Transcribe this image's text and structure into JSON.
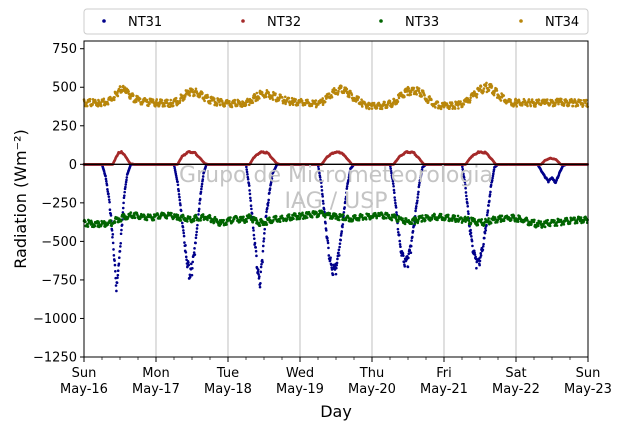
{
  "chart_data": {
    "type": "scatter",
    "xlabel": "Day",
    "ylabel": "Radiation (Wm⁻²)",
    "ylim": [
      -1250,
      800
    ],
    "yticks": [
      -1250,
      -1000,
      -750,
      -500,
      -250,
      0,
      250,
      500,
      750
    ],
    "xlim": [
      0,
      7
    ],
    "xticks": [
      {
        "x": 0,
        "day": "Sun",
        "date": "May-16"
      },
      {
        "x": 1,
        "day": "Mon",
        "date": "May-17"
      },
      {
        "x": 2,
        "day": "Tue",
        "date": "May-18"
      },
      {
        "x": 3,
        "day": "Wed",
        "date": "May-19"
      },
      {
        "x": 4,
        "day": "Thu",
        "date": "May-20"
      },
      {
        "x": 5,
        "day": "Fri",
        "date": "May-21"
      },
      {
        "x": 6,
        "day": "Sat",
        "date": "May-22"
      },
      {
        "x": 7,
        "day": "Sun",
        "date": "May-23"
      }
    ],
    "grid": "vertical",
    "legend_position": "top",
    "watermark": [
      "Grupo de Micrometeorologia",
      "IAG / USP"
    ],
    "series": [
      {
        "name": "NT31",
        "color": "#00008b",
        "points": [
          [
            0.0,
            0
          ],
          [
            0.25,
            0
          ],
          [
            0.3,
            -80
          ],
          [
            0.34,
            -200
          ],
          [
            0.37,
            -320
          ],
          [
            0.4,
            -480
          ],
          [
            0.43,
            -650
          ],
          [
            0.45,
            -780
          ],
          [
            0.47,
            -700
          ],
          [
            0.5,
            -540
          ],
          [
            0.53,
            -380
          ],
          [
            0.56,
            -200
          ],
          [
            0.6,
            -70
          ],
          [
            0.65,
            0
          ],
          [
            1.0,
            0
          ],
          [
            1.25,
            0
          ],
          [
            1.3,
            -120
          ],
          [
            1.34,
            -260
          ],
          [
            1.38,
            -420
          ],
          [
            1.42,
            -600
          ],
          [
            1.46,
            -700
          ],
          [
            1.5,
            -680
          ],
          [
            1.54,
            -560
          ],
          [
            1.58,
            -380
          ],
          [
            1.62,
            -200
          ],
          [
            1.66,
            -60
          ],
          [
            1.7,
            0
          ],
          [
            2.0,
            0
          ],
          [
            2.25,
            0
          ],
          [
            2.3,
            -160
          ],
          [
            2.35,
            -400
          ],
          [
            2.4,
            -640
          ],
          [
            2.44,
            -780
          ],
          [
            2.48,
            -600
          ],
          [
            2.52,
            -380
          ],
          [
            2.57,
            -200
          ],
          [
            2.62,
            -60
          ],
          [
            2.68,
            0
          ],
          [
            3.0,
            0
          ],
          [
            3.25,
            0
          ],
          [
            3.3,
            -140
          ],
          [
            3.35,
            -360
          ],
          [
            3.4,
            -580
          ],
          [
            3.45,
            -700
          ],
          [
            3.5,
            -680
          ],
          [
            3.55,
            -560
          ],
          [
            3.6,
            -360
          ],
          [
            3.65,
            -160
          ],
          [
            3.7,
            -30
          ],
          [
            3.75,
            0
          ],
          [
            4.0,
            0
          ],
          [
            4.25,
            0
          ],
          [
            4.3,
            -140
          ],
          [
            4.35,
            -360
          ],
          [
            4.4,
            -560
          ],
          [
            4.45,
            -650
          ],
          [
            4.5,
            -630
          ],
          [
            4.55,
            -520
          ],
          [
            4.6,
            -340
          ],
          [
            4.65,
            -150
          ],
          [
            4.7,
            -20
          ],
          [
            4.75,
            0
          ],
          [
            5.0,
            0
          ],
          [
            5.25,
            0
          ],
          [
            5.3,
            -150
          ],
          [
            5.35,
            -380
          ],
          [
            5.4,
            -560
          ],
          [
            5.45,
            -640
          ],
          [
            5.5,
            -630
          ],
          [
            5.55,
            -520
          ],
          [
            5.6,
            -340
          ],
          [
            5.65,
            -150
          ],
          [
            5.7,
            -20
          ],
          [
            5.75,
            0
          ],
          [
            6.0,
            0
          ],
          [
            6.3,
            0
          ],
          [
            6.35,
            -40
          ],
          [
            6.4,
            -80
          ],
          [
            6.45,
            -110
          ],
          [
            6.5,
            -90
          ],
          [
            6.55,
            -120
          ],
          [
            6.6,
            -60
          ],
          [
            6.65,
            -10
          ],
          [
            6.7,
            0
          ],
          [
            7.0,
            0
          ]
        ]
      },
      {
        "name": "NT32",
        "color": "#a52a2a",
        "points": [
          [
            0.0,
            0
          ],
          [
            0.4,
            0
          ],
          [
            0.44,
            40
          ],
          [
            0.48,
            75
          ],
          [
            0.52,
            80
          ],
          [
            0.56,
            65
          ],
          [
            0.6,
            35
          ],
          [
            0.64,
            5
          ],
          [
            0.7,
            0
          ],
          [
            1.0,
            0
          ],
          [
            1.3,
            0
          ],
          [
            1.36,
            50
          ],
          [
            1.45,
            80
          ],
          [
            1.54,
            75
          ],
          [
            1.62,
            35
          ],
          [
            1.68,
            5
          ],
          [
            1.72,
            0
          ],
          [
            2.0,
            0
          ],
          [
            2.3,
            0
          ],
          [
            2.36,
            45
          ],
          [
            2.45,
            80
          ],
          [
            2.55,
            75
          ],
          [
            2.62,
            35
          ],
          [
            2.68,
            5
          ],
          [
            2.72,
            0
          ],
          [
            3.0,
            0
          ],
          [
            3.3,
            0
          ],
          [
            3.38,
            50
          ],
          [
            3.48,
            80
          ],
          [
            3.58,
            75
          ],
          [
            3.66,
            35
          ],
          [
            3.72,
            0
          ],
          [
            4.0,
            0
          ],
          [
            4.3,
            0
          ],
          [
            4.38,
            50
          ],
          [
            4.48,
            80
          ],
          [
            4.58,
            75
          ],
          [
            4.66,
            35
          ],
          [
            4.72,
            0
          ],
          [
            5.0,
            0
          ],
          [
            5.3,
            0
          ],
          [
            5.38,
            50
          ],
          [
            5.48,
            80
          ],
          [
            5.58,
            75
          ],
          [
            5.66,
            35
          ],
          [
            5.72,
            0
          ],
          [
            6.0,
            0
          ],
          [
            6.35,
            0
          ],
          [
            6.4,
            25
          ],
          [
            6.48,
            40
          ],
          [
            6.56,
            30
          ],
          [
            6.62,
            0
          ],
          [
            7.0,
            0
          ]
        ]
      },
      {
        "name": "NT33",
        "color": "#006400",
        "points": [
          [
            0.0,
            -380
          ],
          [
            0.1,
            -385
          ],
          [
            0.2,
            -390
          ],
          [
            0.3,
            -385
          ],
          [
            0.4,
            -375
          ],
          [
            0.5,
            -350
          ],
          [
            0.6,
            -335
          ],
          [
            0.7,
            -330
          ],
          [
            0.8,
            -340
          ],
          [
            0.9,
            -345
          ],
          [
            1.0,
            -340
          ],
          [
            1.1,
            -330
          ],
          [
            1.2,
            -335
          ],
          [
            1.3,
            -345
          ],
          [
            1.4,
            -350
          ],
          [
            1.5,
            -355
          ],
          [
            1.6,
            -345
          ],
          [
            1.7,
            -340
          ],
          [
            1.8,
            -360
          ],
          [
            1.9,
            -380
          ],
          [
            2.0,
            -370
          ],
          [
            2.1,
            -355
          ],
          [
            2.2,
            -365
          ],
          [
            2.3,
            -345
          ],
          [
            2.4,
            -375
          ],
          [
            2.5,
            -380
          ],
          [
            2.6,
            -360
          ],
          [
            2.7,
            -355
          ],
          [
            2.8,
            -350
          ],
          [
            2.9,
            -340
          ],
          [
            3.0,
            -335
          ],
          [
            3.1,
            -330
          ],
          [
            3.2,
            -325
          ],
          [
            3.3,
            -320
          ],
          [
            3.4,
            -330
          ],
          [
            3.5,
            -340
          ],
          [
            3.6,
            -345
          ],
          [
            3.7,
            -350
          ],
          [
            3.8,
            -345
          ],
          [
            3.9,
            -340
          ],
          [
            4.0,
            -335
          ],
          [
            4.1,
            -330
          ],
          [
            4.2,
            -335
          ],
          [
            4.3,
            -345
          ],
          [
            4.4,
            -360
          ],
          [
            4.5,
            -375
          ],
          [
            4.6,
            -365
          ],
          [
            4.7,
            -350
          ],
          [
            4.8,
            -345
          ],
          [
            4.9,
            -340
          ],
          [
            5.0,
            -345
          ],
          [
            5.1,
            -350
          ],
          [
            5.2,
            -355
          ],
          [
            5.3,
            -360
          ],
          [
            5.4,
            -370
          ],
          [
            5.5,
            -380
          ],
          [
            5.6,
            -375
          ],
          [
            5.7,
            -360
          ],
          [
            5.8,
            -350
          ],
          [
            5.9,
            -345
          ],
          [
            6.0,
            -350
          ],
          [
            6.1,
            -360
          ],
          [
            6.2,
            -375
          ],
          [
            6.3,
            -390
          ],
          [
            6.4,
            -385
          ],
          [
            6.5,
            -380
          ],
          [
            6.6,
            -375
          ],
          [
            6.7,
            -370
          ],
          [
            6.8,
            -365
          ],
          [
            6.9,
            -360
          ],
          [
            7.0,
            -360
          ]
        ]
      },
      {
        "name": "NT34",
        "color": "#b8860b",
        "points": [
          [
            0.0,
            400
          ],
          [
            0.2,
            400
          ],
          [
            0.3,
            405
          ],
          [
            0.4,
            430
          ],
          [
            0.45,
            460
          ],
          [
            0.52,
            485
          ],
          [
            0.58,
            470
          ],
          [
            0.65,
            440
          ],
          [
            0.75,
            415
          ],
          [
            0.85,
            405
          ],
          [
            0.95,
            400
          ],
          [
            1.0,
            398
          ],
          [
            1.2,
            395
          ],
          [
            1.3,
            410
          ],
          [
            1.38,
            440
          ],
          [
            1.45,
            470
          ],
          [
            1.52,
            470
          ],
          [
            1.6,
            460
          ],
          [
            1.68,
            435
          ],
          [
            1.78,
            410
          ],
          [
            1.9,
            400
          ],
          [
            2.0,
            395
          ],
          [
            2.2,
            395
          ],
          [
            2.3,
            410
          ],
          [
            2.4,
            440
          ],
          [
            2.5,
            460
          ],
          [
            2.6,
            450
          ],
          [
            2.7,
            430
          ],
          [
            2.8,
            415
          ],
          [
            2.9,
            405
          ],
          [
            3.0,
            400
          ],
          [
            3.1,
            395
          ],
          [
            3.2,
            390
          ],
          [
            3.3,
            400
          ],
          [
            3.4,
            440
          ],
          [
            3.5,
            475
          ],
          [
            3.58,
            485
          ],
          [
            3.66,
            470
          ],
          [
            3.76,
            430
          ],
          [
            3.86,
            400
          ],
          [
            3.96,
            380
          ],
          [
            4.0,
            375
          ],
          [
            4.15,
            380
          ],
          [
            4.3,
            400
          ],
          [
            4.4,
            440
          ],
          [
            4.5,
            475
          ],
          [
            4.58,
            485
          ],
          [
            4.66,
            470
          ],
          [
            4.76,
            430
          ],
          [
            4.86,
            395
          ],
          [
            4.96,
            380
          ],
          [
            5.0,
            378
          ],
          [
            5.2,
            385
          ],
          [
            5.3,
            400
          ],
          [
            5.4,
            440
          ],
          [
            5.5,
            480
          ],
          [
            5.58,
            500
          ],
          [
            5.66,
            490
          ],
          [
            5.76,
            450
          ],
          [
            5.86,
            415
          ],
          [
            5.96,
            400
          ],
          [
            6.0,
            400
          ],
          [
            6.2,
            400
          ],
          [
            6.4,
            395
          ],
          [
            6.6,
            405
          ],
          [
            6.8,
            400
          ],
          [
            7.0,
            395
          ]
        ]
      }
    ]
  }
}
